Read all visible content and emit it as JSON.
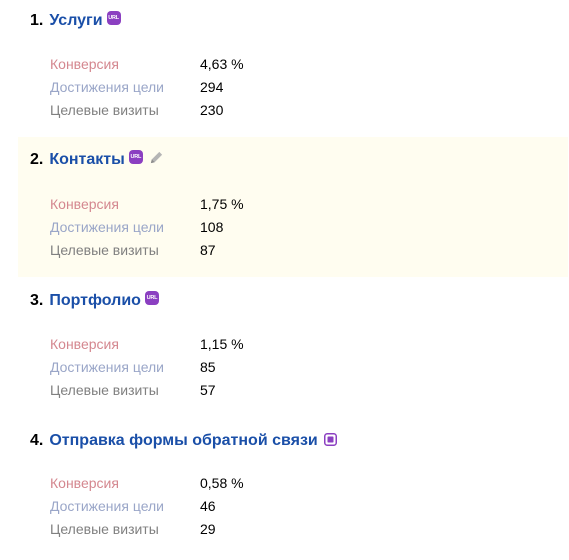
{
  "goals": [
    {
      "number": "1.",
      "name": "Услуги",
      "badge": "url-icon",
      "conversion": "4,63 %",
      "achievements": "294",
      "visits": "230"
    },
    {
      "number": "2.",
      "name": "Контакты",
      "badge": "url-icon",
      "conversion": "1,75 %",
      "achievements": "108",
      "visits": "87"
    },
    {
      "number": "3.",
      "name": "Портфолио",
      "badge": "url-icon",
      "conversion": "1,15 %",
      "achievements": "85",
      "visits": "57"
    },
    {
      "number": "4.",
      "name": "Отправка формы обратной связи",
      "badge": "form-icon",
      "conversion": "0,58 %",
      "achievements": "46",
      "visits": "29"
    }
  ],
  "labels": {
    "conversion": "Конверсия",
    "achievements": "Достижения цели",
    "visits": "Целевые визиты",
    "url_badge": "URL"
  },
  "colors": {
    "goal_link": "#1a4fa8",
    "badge": "#8b3fc1",
    "conversion_label": "#d4878f",
    "achievements_label": "#9aa6c8",
    "visits_label": "#808080",
    "highlight_bg": "#fffdf0"
  }
}
